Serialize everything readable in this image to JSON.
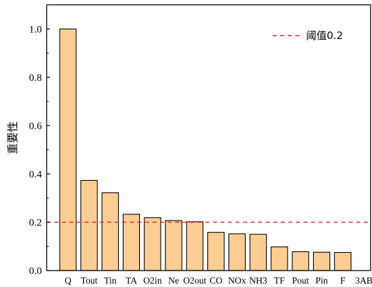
{
  "chart_data": {
    "type": "bar",
    "categories": [
      "Q",
      "Tout",
      "Tin",
      "TA",
      "O2in",
      "Ne",
      "O2out",
      "CO",
      "NOx",
      "NH3",
      "TF",
      "Pout",
      "Pin",
      "F",
      "3AB"
    ],
    "values": [
      1.0,
      0.373,
      0.322,
      0.233,
      0.219,
      0.207,
      0.202,
      0.158,
      0.152,
      0.15,
      0.098,
      0.078,
      0.076,
      0.075,
      0.0
    ],
    "title": "",
    "xlabel": "",
    "ylabel": "重要性",
    "ylim": [
      0,
      1.1
    ],
    "yticks": [
      0.0,
      0.2,
      0.4,
      0.6,
      0.8,
      1.0
    ],
    "ytick_labels": [
      "0.0",
      "0.2",
      "0.4",
      "0.6",
      "0.8",
      "1.0"
    ],
    "threshold": {
      "value": 0.2,
      "label": "阈值0.2",
      "color": "#e8202a",
      "style": "dashed"
    },
    "legend": {
      "position": "top-right",
      "entries": [
        "阈值0.2"
      ]
    },
    "grid": false,
    "bar_fill": "#fbcd93",
    "bar_edge": "#000000"
  }
}
